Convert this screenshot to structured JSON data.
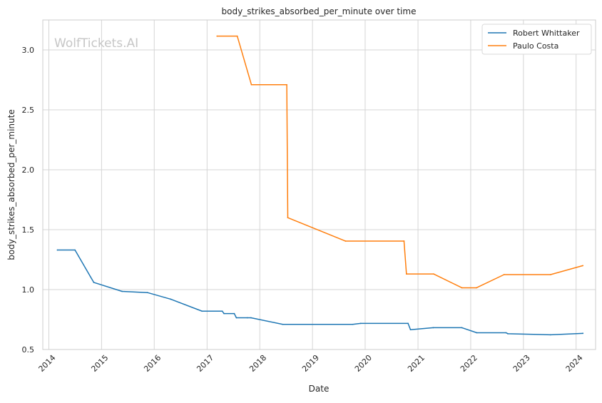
{
  "chart_data": {
    "type": "line",
    "title": "body_strikes_absorbed_per_minute over time",
    "xlabel": "Date",
    "ylabel": "body_strikes_absorbed_per_minute",
    "watermark": "WolfTickets.AI",
    "xlim": [
      "2013-11-20",
      "2024-05-15"
    ],
    "ylim": [
      0.5,
      3.25
    ],
    "x_ticks": [
      "2014-01-01",
      "2015-01-01",
      "2016-01-01",
      "2017-01-01",
      "2018-01-01",
      "2019-01-01",
      "2020-01-01",
      "2021-01-01",
      "2022-01-01",
      "2023-01-01",
      "2024-01-01"
    ],
    "x_tick_labels": [
      "2014",
      "2015",
      "2016",
      "2017",
      "2018",
      "2019",
      "2020",
      "2021",
      "2022",
      "2023",
      "2024"
    ],
    "y_ticks": [
      0.5,
      1.0,
      1.5,
      2.0,
      2.5,
      3.0
    ],
    "y_tick_labels": [
      "0.5",
      "1.0",
      "1.5",
      "2.0",
      "2.5",
      "3.0"
    ],
    "grid": true,
    "legend_position": "top-right",
    "series": [
      {
        "name": "Robert Whittaker",
        "color": "#1f77b4",
        "points": [
          [
            "2014-03-01",
            1.33
          ],
          [
            "2014-07-01",
            1.33
          ],
          [
            "2014-11-08",
            1.06
          ],
          [
            "2015-05-23",
            0.985
          ],
          [
            "2015-11-15",
            0.975
          ],
          [
            "2016-04-24",
            0.92
          ],
          [
            "2016-11-27",
            0.82
          ],
          [
            "2017-04-16",
            0.82
          ],
          [
            "2017-04-28",
            0.8
          ],
          [
            "2017-07-08",
            0.8
          ],
          [
            "2017-07-23",
            0.765
          ],
          [
            "2017-10-07",
            0.765
          ],
          [
            "2017-11-01",
            0.765
          ],
          [
            "2018-06-09",
            0.71
          ],
          [
            "2019-10-06",
            0.71
          ],
          [
            "2019-12-01",
            0.718
          ],
          [
            "2020-10-24",
            0.718
          ],
          [
            "2020-11-10",
            0.665
          ],
          [
            "2021-04-17",
            0.682
          ],
          [
            "2021-11-01",
            0.682
          ],
          [
            "2022-02-12",
            0.64
          ],
          [
            "2022-09-03",
            0.64
          ],
          [
            "2022-09-15",
            0.632
          ],
          [
            "2023-07-08",
            0.623
          ],
          [
            "2024-02-17",
            0.635
          ]
        ]
      },
      {
        "name": "Paulo Costa",
        "color": "#ff7f0e",
        "points": [
          [
            "2017-03-11",
            3.115
          ],
          [
            "2017-07-29",
            3.115
          ],
          [
            "2017-11-04",
            2.71
          ],
          [
            "2018-07-07",
            2.71
          ],
          [
            "2018-07-14",
            1.6
          ],
          [
            "2019-08-17",
            1.405
          ],
          [
            "2020-09-26",
            1.405
          ],
          [
            "2020-10-13",
            1.13
          ],
          [
            "2021-04-20",
            1.13
          ],
          [
            "2021-11-01",
            1.015
          ],
          [
            "2022-02-10",
            1.015
          ],
          [
            "2022-08-20",
            1.125
          ],
          [
            "2023-07-08",
            1.125
          ],
          [
            "2024-02-17",
            1.2
          ]
        ]
      }
    ]
  }
}
